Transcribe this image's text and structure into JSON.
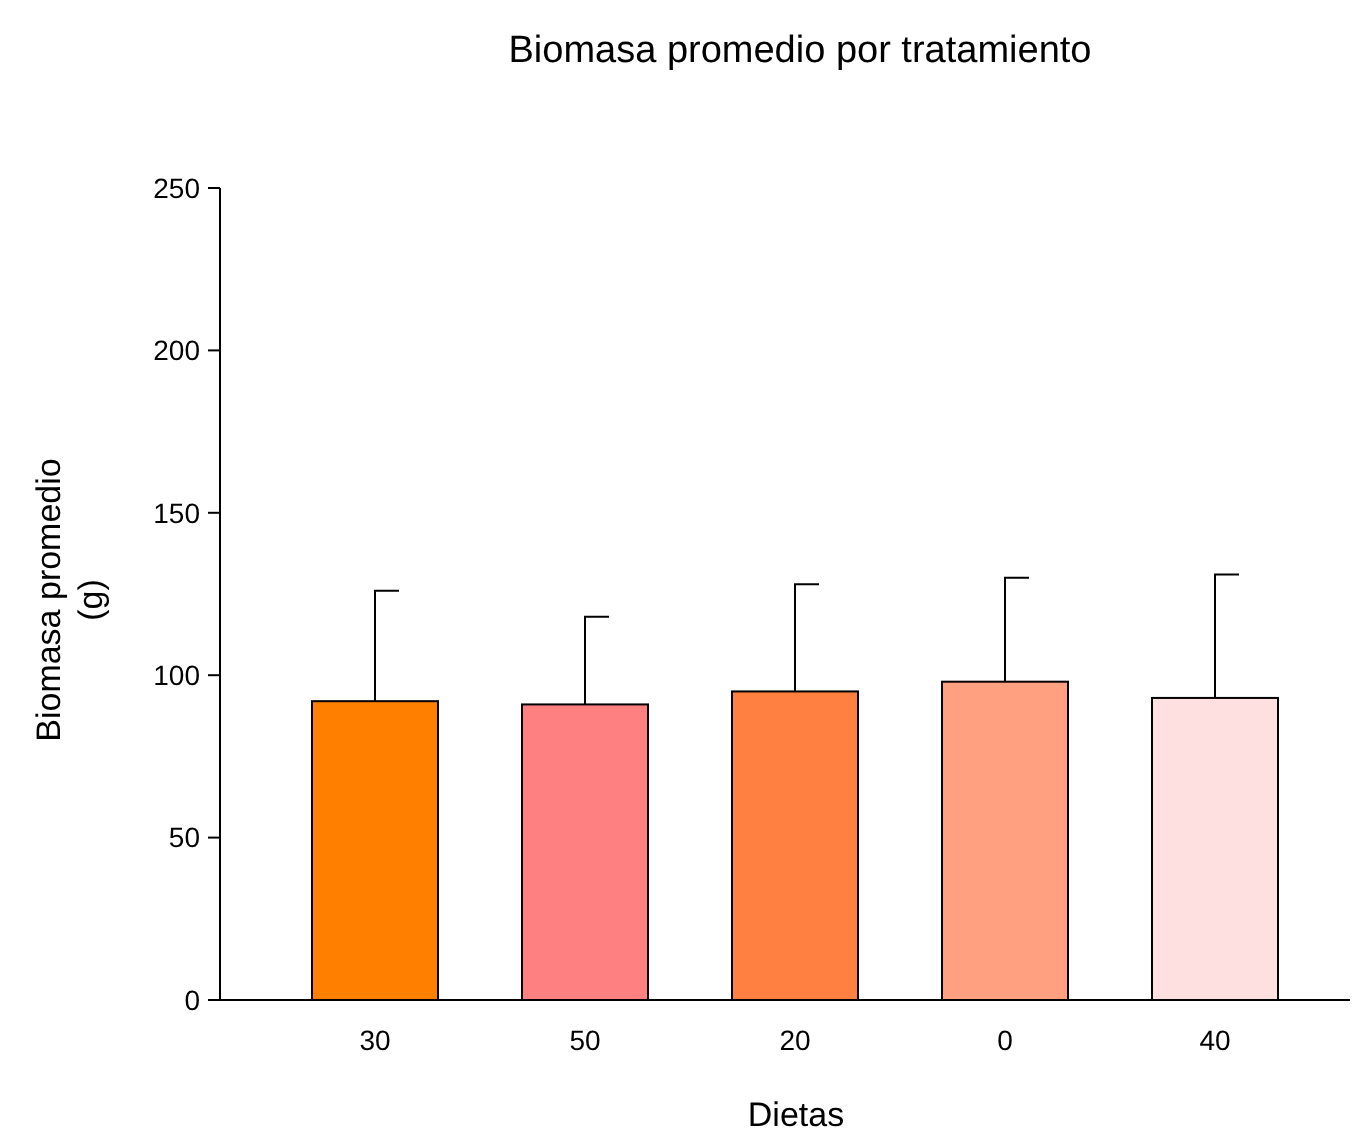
{
  "chart_data": {
    "type": "bar",
    "title": "Biomasa promedio por tratamiento",
    "xlabel": "Dietas",
    "ylabel": "Biomasa promedio (g)",
    "categories": [
      "30",
      "50",
      "20",
      "0",
      "40"
    ],
    "values": [
      92,
      91,
      95,
      98,
      93
    ],
    "colors": [
      "#ff8000",
      "#ff8080",
      "#ff8040",
      "#ffa080",
      "#ffe0e0"
    ],
    "errors": [
      [
        92,
        126
      ],
      [
        91,
        118
      ],
      [
        95,
        128
      ],
      [
        98,
        130
      ],
      [
        93,
        131
      ]
    ],
    "ylim": [
      0,
      250
    ],
    "yticks": [
      0,
      50,
      100,
      150,
      200,
      250
    ],
    "grid": false
  }
}
